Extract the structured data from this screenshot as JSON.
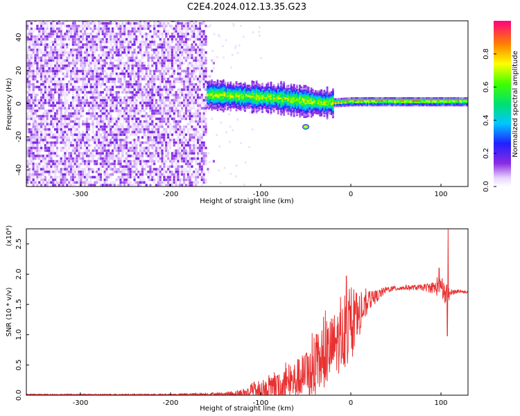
{
  "figure": {
    "title": "C2E4.2024.012.13.35.G23"
  },
  "chart_data": [
    {
      "type": "heatmap",
      "title": "C2E4.2024.012.13.35.G23",
      "xlabel": "Height of straight line (km)",
      "ylabel": "Frequency (Hz)",
      "xlim": [
        -360,
        130
      ],
      "ylim": [
        -50,
        50
      ],
      "xticks": [
        -300,
        -200,
        -100,
        0,
        100
      ],
      "yticks": [
        -40,
        -20,
        0,
        20,
        40
      ],
      "colorbar": {
        "label": "Normalized spectral amplitude",
        "range": [
          0.0,
          1.0
        ],
        "ticks": [
          0.0,
          0.2,
          0.4,
          0.6,
          0.8
        ],
        "colormap": "rainbow"
      },
      "features": {
        "noise_region_x": [
          -360,
          -160
        ],
        "signal_band_center_hz": [
          [
            -160,
            5
          ],
          [
            -120,
            4
          ],
          [
            -80,
            3
          ],
          [
            -50,
            1
          ],
          [
            -30,
            0
          ],
          [
            0,
            1
          ],
          [
            50,
            1
          ],
          [
            100,
            1
          ],
          [
            130,
            1
          ]
        ],
        "strong_spot": {
          "x": -50,
          "y": -14
        }
      }
    },
    {
      "type": "line",
      "xlabel": "Height of straight line (km)",
      "ylabel": "SNR (10 * v/v)",
      "yscale_label": "(x10⁴)",
      "xlim": [
        -360,
        130
      ],
      "ylim": [
        0,
        2.75
      ],
      "xticks": [
        -300,
        -200,
        -100,
        0,
        100
      ],
      "yticks": [
        0.0,
        0.5,
        1.0,
        1.5,
        2.0,
        2.5
      ],
      "series": [
        {
          "color": "#e83232",
          "envelope": {
            "x": [
              -360,
              -200,
              -140,
              -120,
              -100,
              -80,
              -60,
              -40,
              -30,
              -20,
              -10,
              0,
              10,
              20,
              40,
              60,
              80,
              90,
              100,
              105,
              108,
              110,
              120,
              130
            ],
            "baseline": [
              0.01,
              0.01,
              0.02,
              0.03,
              0.05,
              0.1,
              0.25,
              0.4,
              0.6,
              0.8,
              0.95,
              1.05,
              1.3,
              1.55,
              1.75,
              1.78,
              1.78,
              1.78,
              1.75,
              1.65,
              1.55,
              1.7,
              1.72,
              1.7
            ],
            "spread": [
              0.01,
              0.01,
              0.03,
              0.08,
              0.15,
              0.25,
              0.35,
              0.45,
              0.5,
              0.55,
              0.55,
              0.5,
              0.3,
              0.15,
              0.05,
              0.04,
              0.05,
              0.1,
              0.15,
              0.2,
              0.3,
              0.05,
              0.03,
              0.02
            ]
          },
          "peaks": [
            {
              "x": -5,
              "y": 1.97
            },
            {
              "x": 98,
              "y": 2.1
            },
            {
              "x": 108,
              "y": 2.75
            },
            {
              "x": 107,
              "y": 0.98
            }
          ]
        }
      ]
    }
  ]
}
